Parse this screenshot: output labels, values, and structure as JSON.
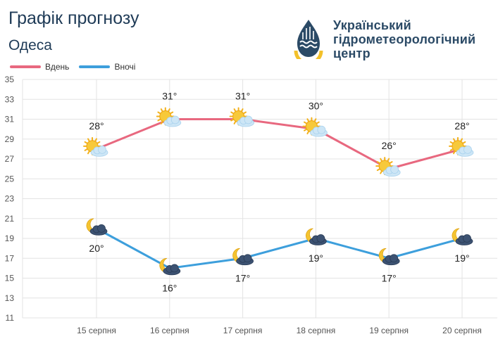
{
  "header": {
    "title": "Графік прогнозу",
    "city": "Одеса"
  },
  "logo": {
    "line1": "Український",
    "line2": "гідрометеорологічний",
    "line3": "центр",
    "icon": "drop-sun-icon"
  },
  "colors": {
    "day": "#e8687f",
    "night": "#3d9fdc",
    "grid": "#e3e3e3",
    "axis_text": "#555555",
    "title": "#1f3b57"
  },
  "chart_data": {
    "type": "line",
    "categories": [
      "15 серпня",
      "16 серпня",
      "17 серпня",
      "18 серпня",
      "19 серпня",
      "20 серпня"
    ],
    "series": [
      {
        "name": "Вдень",
        "values": [
          28,
          31,
          31,
          30,
          26,
          28
        ],
        "labels": [
          "28°",
          "31°",
          "31°",
          "30°",
          "26°",
          "28°"
        ],
        "icons": [
          "sun-cloud-icon",
          "sun-cloud-icon",
          "sun-cloud-icon",
          "sun-cloud-icon",
          "sun-cloud-icon",
          "sun-cloud-icon"
        ]
      },
      {
        "name": "Вночі",
        "values": [
          20,
          16,
          17,
          19,
          17,
          19
        ],
        "labels": [
          "20°",
          "16°",
          "17°",
          "19°",
          "17°",
          "19°"
        ],
        "icons": [
          "moon-cloud-icon",
          "moon-cloud-icon",
          "moon-cloud-icon",
          "moon-cloud-icon",
          "moon-cloud-icon",
          "moon-cloud-icon"
        ]
      }
    ],
    "y_ticks": [
      "11",
      "13",
      "15",
      "17",
      "19",
      "21",
      "23",
      "25",
      "27",
      "29",
      "31",
      "33",
      "35"
    ],
    "ylim": [
      11,
      35
    ],
    "grid": true,
    "legend_position": "top-left"
  }
}
